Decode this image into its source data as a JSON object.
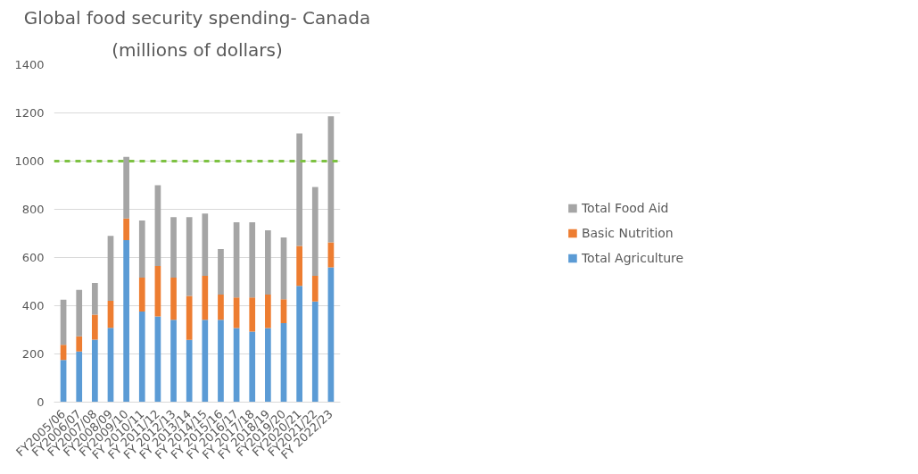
{
  "chart_data": {
    "type": "bar",
    "title": "Global food security spending- Canada",
    "subtitle": "(millions of dollars)",
    "categories": [
      "FY2005/06",
      "FY2006/07",
      "FY2007/08",
      "FY2008/09",
      "FY2009/10",
      "FY 2010/11",
      "FY 2011/12",
      "FY 2012/13",
      "FY 2013/14",
      "FY 2014/15",
      "FY 2015/16",
      "FY 2016/17",
      "FY 2017/18",
      "FY 2018/19",
      "FY2019/20",
      "FY2020/21",
      "FY2021/22",
      "FY 2022/23"
    ],
    "stacked": true,
    "series": [
      {
        "name": "Total Agriculture",
        "color": "#5b9bd5",
        "values": [
          175,
          210,
          259,
          308,
          672,
          376,
          356,
          342,
          258,
          342,
          342,
          307,
          293,
          307,
          328,
          482,
          418,
          559
        ]
      },
      {
        "name": "Basic Nutrition",
        "color": "#ed7d31",
        "values": [
          63,
          63,
          104,
          112,
          90,
          141,
          209,
          175,
          183,
          182,
          104,
          127,
          141,
          139,
          99,
          166,
          106,
          104
        ]
      },
      {
        "name": "Total Food Aid",
        "color": "#a5a5a5",
        "values": [
          187,
          193,
          131,
          270,
          256,
          237,
          335,
          251,
          327,
          258,
          189,
          312,
          312,
          267,
          256,
          467,
          369,
          523
        ]
      }
    ],
    "ylim": [
      0,
      1400
    ],
    "yticks": [
      0,
      200,
      400,
      600,
      800,
      1000,
      1200,
      1400
    ],
    "grid": "y",
    "legend": "right",
    "ref_lines": [
      {
        "axis": "y",
        "value": 1000,
        "label": null,
        "color": "#7dc242",
        "line_style": "dashed"
      }
    ]
  }
}
